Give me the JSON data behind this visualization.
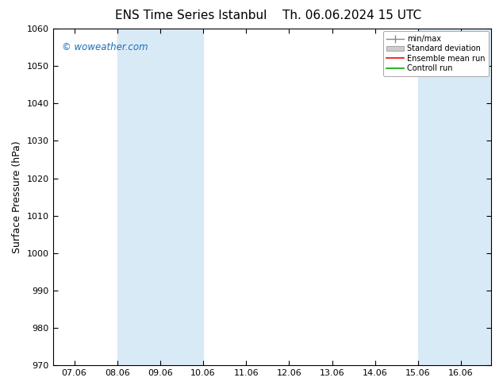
{
  "title": "ENS Time Series Istanbul",
  "title2": "Th. 06.06.2024 15 UTC",
  "ylabel": "Surface Pressure (hPa)",
  "ylim": [
    970,
    1060
  ],
  "yticks": [
    970,
    980,
    990,
    1000,
    1010,
    1020,
    1030,
    1040,
    1050,
    1060
  ],
  "x_labels": [
    "07.06",
    "08.06",
    "09.06",
    "10.06",
    "11.06",
    "12.06",
    "13.06",
    "14.06",
    "15.06",
    "16.06"
  ],
  "x_positions": [
    0,
    1,
    2,
    3,
    4,
    5,
    6,
    7,
    8,
    9
  ],
  "xlim": [
    -0.5,
    9.7
  ],
  "shaded_bands": [
    {
      "x_start": 1,
      "x_end": 2,
      "color": "#d9eaf7"
    },
    {
      "x_start": 2,
      "x_end": 3,
      "color": "#d9eaf7"
    },
    {
      "x_start": 8,
      "x_end": 9,
      "color": "#d9eaf7"
    },
    {
      "x_start": 9,
      "x_end": 9.7,
      "color": "#d9eaf7"
    }
  ],
  "watermark": "© woweather.com",
  "watermark_color": "#1a6eb5",
  "background_color": "#ffffff",
  "plot_bg_color": "#ffffff",
  "legend_items": [
    "min/max",
    "Standard deviation",
    "Ensemble mean run",
    "Controll run"
  ],
  "grid_color": "#bbbbbb",
  "figsize": [
    6.34,
    4.9
  ],
  "dpi": 100,
  "title_fontsize": 11,
  "label_fontsize": 8,
  "ylabel_fontsize": 9
}
